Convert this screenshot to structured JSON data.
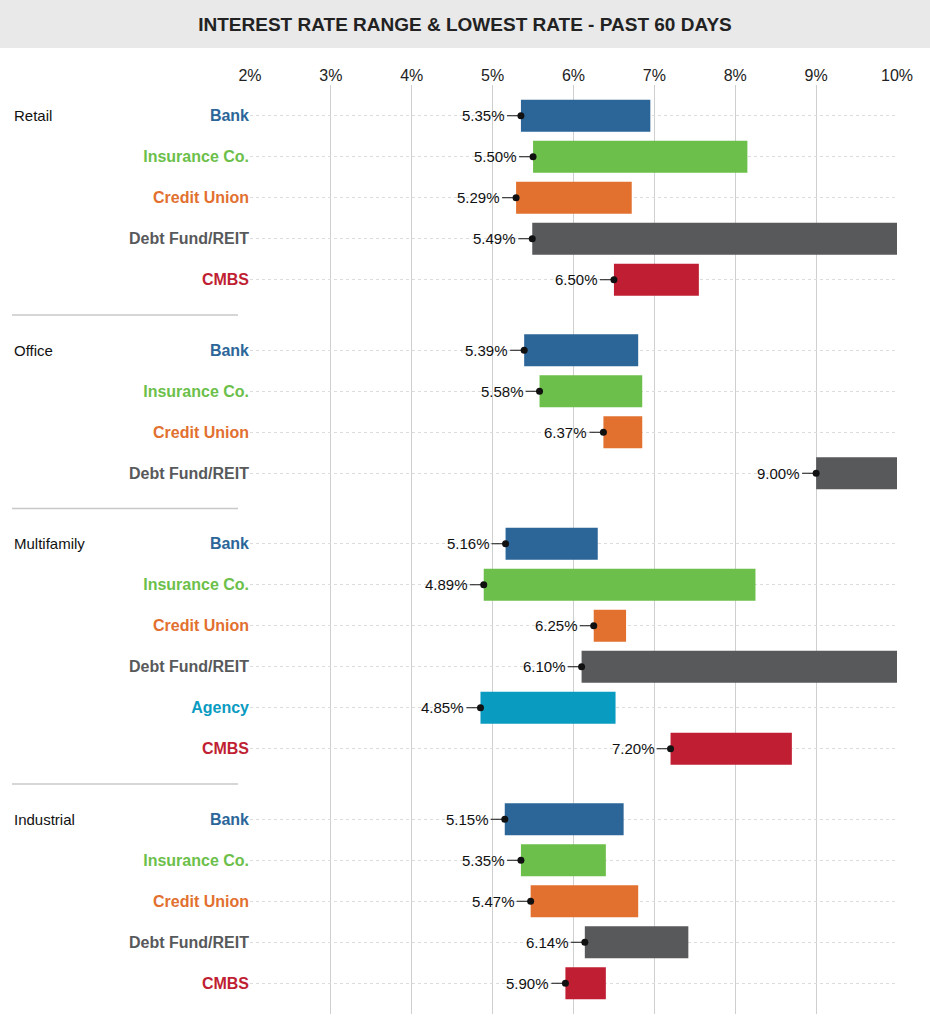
{
  "chart_data": {
    "type": "bar",
    "title": "INTEREST RATE RANGE & LOWEST RATE - PAST 60 DAYS",
    "orientation": "horizontal",
    "data_labels": true,
    "grid": true,
    "xlim": [
      2,
      10
    ],
    "xticks": [
      {
        "value": 2,
        "label": "2%"
      },
      {
        "value": 3,
        "label": "3%"
      },
      {
        "value": 4,
        "label": "4%"
      },
      {
        "value": 5,
        "label": "5%"
      },
      {
        "value": 6,
        "label": "6%"
      },
      {
        "value": 7,
        "label": "7%"
      },
      {
        "value": 8,
        "label": "8%"
      },
      {
        "value": 9,
        "label": "9%"
      },
      {
        "value": 10,
        "label": "10%"
      }
    ],
    "groups": [
      "Retail",
      "Office",
      "Multifamily",
      "Industrial"
    ],
    "series": [
      {
        "name": "Bank",
        "color": "#2c6699",
        "low": [
          5.35,
          5.39,
          5.16,
          5.15
        ],
        "high": [
          6.95,
          6.8,
          6.3,
          6.62
        ],
        "low_labels": [
          "5.35%",
          "5.39%",
          "5.16%",
          "5.15%"
        ]
      },
      {
        "name": "Insurance Co.",
        "color": "#6cbf4a",
        "low": [
          5.5,
          5.58,
          4.89,
          5.35
        ],
        "high": [
          8.15,
          6.85,
          8.25,
          6.4
        ],
        "low_labels": [
          "5.50%",
          "5.58%",
          "4.89%",
          "5.35%"
        ]
      },
      {
        "name": "Credit Union",
        "color": "#e2702f",
        "low": [
          5.29,
          6.37,
          6.25,
          5.47
        ],
        "high": [
          6.72,
          6.85,
          6.65,
          6.8
        ],
        "low_labels": [
          "5.29%",
          "6.37%",
          "6.25%",
          "5.47%"
        ]
      },
      {
        "name": "Debt Fund/REIT",
        "color": "#58595b",
        "low": [
          5.49,
          9.0,
          6.1,
          6.14
        ],
        "high": [
          10,
          10,
          10,
          7.42
        ],
        "low_labels": [
          "5.49%",
          "9.00%",
          "6.10%",
          "6.14%"
        ]
      },
      {
        "name": "Agency",
        "color": "#0a9bc1",
        "low": [
          null,
          null,
          4.85,
          null
        ],
        "high": [
          null,
          null,
          6.52,
          null
        ],
        "low_labels": [
          null,
          null,
          "4.85%",
          null
        ]
      },
      {
        "name": "CMBS",
        "color": "#c01f33",
        "low": [
          6.5,
          null,
          7.2,
          5.9
        ],
        "high": [
          7.55,
          null,
          8.7,
          6.4
        ],
        "low_labels": [
          "6.50%",
          null,
          "7.20%",
          "5.90%"
        ]
      }
    ]
  }
}
